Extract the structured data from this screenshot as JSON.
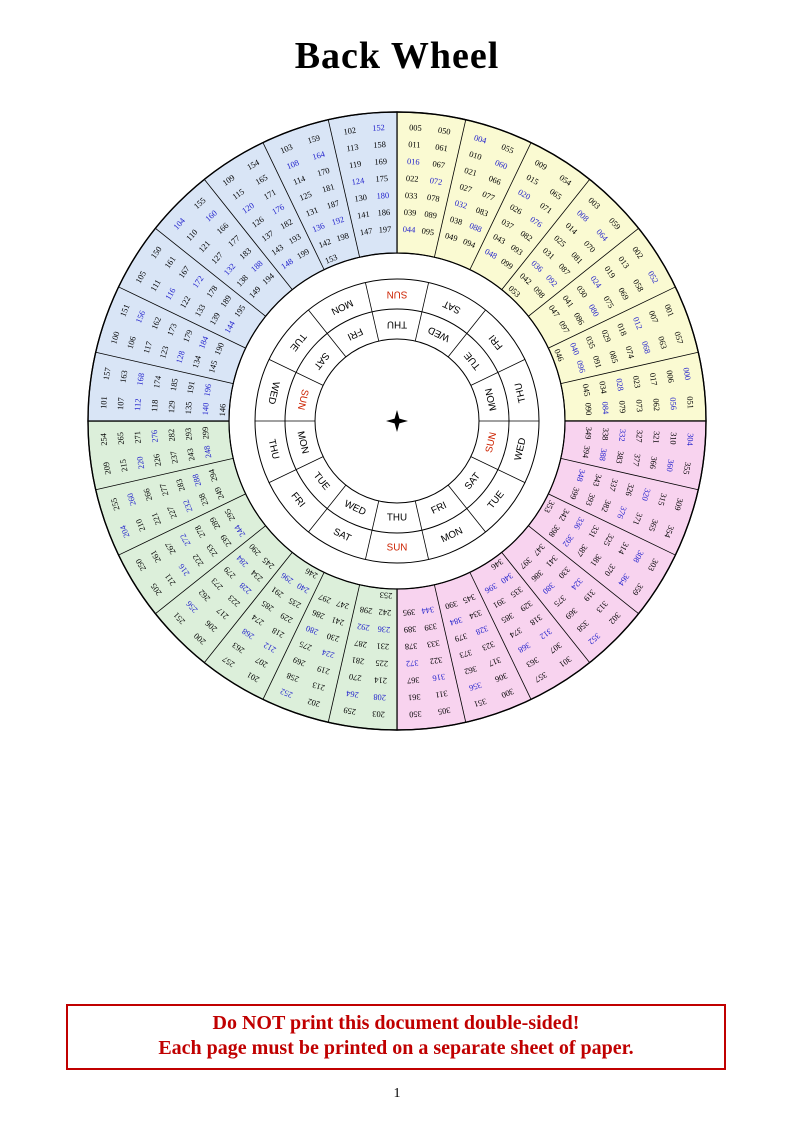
{
  "page": {
    "title": "Back Wheel",
    "page_number": "1",
    "warning_line1": "Do NOT print this document double-sided!",
    "warning_line2": "Each page must be printed on a separate sheet of paper.",
    "warning_color": "#c00000"
  },
  "wheel": {
    "colors": {
      "line": "#000000",
      "text": "#000000",
      "leap": "#2222cc",
      "sunday": "#cc2200",
      "day_text": "#000000"
    },
    "day_rings": [
      {
        "name": "outer-day-ring",
        "days": [
          "SUN",
          "SAT",
          "FRI",
          "THU",
          "WED",
          "TUE",
          "MON",
          "SUN",
          "SAT",
          "FRI",
          "THU",
          "WED",
          "TUE",
          "MON"
        ]
      },
      {
        "name": "inner-day-ring",
        "days": [
          "THU",
          "WED",
          "TUE",
          "MON",
          "SUN",
          "SAT",
          "FRI",
          "THU",
          "WED",
          "TUE",
          "MON",
          "SUN",
          "SAT",
          "FRI"
        ]
      }
    ],
    "quadrants": [
      {
        "name": "years-000-099",
        "color": "#fafad2",
        "start_angle": 0,
        "sectors": [
          {
            "c1": [
              "005",
              "011",
              "016",
              "022",
              "033",
              "039",
              "044"
            ],
            "c2": [
              "050",
              "061",
              "067",
              "072",
              "078",
              "089",
              "095"
            ]
          },
          {
            "c1": [
              "004",
              "010",
              "021",
              "027",
              "032",
              "038",
              "049"
            ],
            "c2": [
              "055",
              "060",
              "066",
              "077",
              "083",
              "088",
              "094"
            ]
          },
          {
            "c1": [
              "009",
              "015",
              "020",
              "026",
              "037",
              "043",
              "048"
            ],
            "c2": [
              "054",
              "065",
              "071",
              "076",
              "082",
              "093",
              "099"
            ]
          },
          {
            "c1": [
              "003",
              "008",
              "014",
              "025",
              "031",
              "036",
              "042",
              "053"
            ],
            "c2": [
              "059",
              "064",
              "070",
              "081",
              "087",
              "092",
              "098"
            ]
          },
          {
            "c1": [
              "002",
              "013",
              "019",
              "024",
              "030",
              "041",
              "047"
            ],
            "c2": [
              "052",
              "058",
              "069",
              "075",
              "080",
              "086",
              "097"
            ]
          },
          {
            "c1": [
              "001",
              "007",
              "012",
              "018",
              "029",
              "035",
              "040",
              "046"
            ],
            "c2": [
              "057",
              "063",
              "068",
              "074",
              "085",
              "091",
              "096"
            ]
          },
          {
            "c1": [
              "000",
              "006",
              "017",
              "023",
              "028",
              "034",
              "045"
            ],
            "c2": [
              "051",
              "056",
              "062",
              "073",
              "079",
              "084",
              "090"
            ]
          }
        ]
      },
      {
        "name": "years-300-399",
        "color": "#f8d3ef",
        "start_angle": 90,
        "sectors": [
          {
            "c1": [
              "304",
              "310",
              "321",
              "327",
              "332",
              "338",
              "349"
            ],
            "c2": [
              "355",
              "360",
              "366",
              "377",
              "383",
              "388",
              "394"
            ]
          },
          {
            "c1": [
              "309",
              "315",
              "320",
              "326",
              "337",
              "343",
              "348"
            ],
            "c2": [
              "354",
              "365",
              "371",
              "376",
              "382",
              "393",
              "399"
            ]
          },
          {
            "c1": [
              "303",
              "308",
              "314",
              "325",
              "331",
              "336",
              "342",
              "353"
            ],
            "c2": [
              "359",
              "364",
              "370",
              "381",
              "387",
              "392",
              "398"
            ]
          },
          {
            "c1": [
              "302",
              "313",
              "319",
              "324",
              "330",
              "341",
              "347"
            ],
            "c2": [
              "352",
              "358",
              "369",
              "375",
              "380",
              "386",
              "397"
            ]
          },
          {
            "c1": [
              "301",
              "307",
              "312",
              "318",
              "329",
              "335",
              "340",
              "346"
            ],
            "c2": [
              "357",
              "363",
              "368",
              "374",
              "385",
              "391",
              "396"
            ]
          },
          {
            "c1": [
              "300",
              "306",
              "317",
              "323",
              "328",
              "334",
              "345"
            ],
            "c2": [
              "351",
              "356",
              "362",
              "373",
              "379",
              "384",
              "390"
            ]
          },
          {
            "c1": [
              "305",
              "311",
              "316",
              "322",
              "333",
              "339",
              "344"
            ],
            "c2": [
              "350",
              "361",
              "367",
              "372",
              "378",
              "389",
              "395"
            ]
          }
        ]
      },
      {
        "name": "years-200-299",
        "color": "#dcefda",
        "start_angle": 180,
        "sectors": [
          {
            "c1": [
              "203",
              "208",
              "214",
              "225",
              "231",
              "236",
              "242",
              "253"
            ],
            "c2": [
              "259",
              "264",
              "270",
              "281",
              "287",
              "292",
              "298"
            ]
          },
          {
            "c1": [
              "202",
              "213",
              "219",
              "224",
              "230",
              "241",
              "247"
            ],
            "c2": [
              "252",
              "258",
              "269",
              "275",
              "280",
              "286",
              "297"
            ]
          },
          {
            "c1": [
              "201",
              "207",
              "212",
              "218",
              "229",
              "235",
              "240",
              "246"
            ],
            "c2": [
              "257",
              "263",
              "268",
              "274",
              "285",
              "291",
              "296"
            ]
          },
          {
            "c1": [
              "200",
              "206",
              "217",
              "223",
              "228",
              "234",
              "245"
            ],
            "c2": [
              "251",
              "256",
              "262",
              "273",
              "279",
              "284",
              "290"
            ]
          },
          {
            "c1": [
              "205",
              "211",
              "216",
              "222",
              "233",
              "239",
              "244"
            ],
            "c2": [
              "250",
              "261",
              "267",
              "272",
              "278",
              "289",
              "295"
            ]
          },
          {
            "c1": [
              "204",
              "210",
              "221",
              "227",
              "232",
              "238",
              "249"
            ],
            "c2": [
              "255",
              "260",
              "266",
              "277",
              "283",
              "288",
              "294"
            ]
          },
          {
            "c1": [
              "209",
              "215",
              "220",
              "226",
              "237",
              "243",
              "248"
            ],
            "c2": [
              "254",
              "265",
              "271",
              "276",
              "282",
              "293",
              "299"
            ]
          }
        ]
      },
      {
        "name": "years-100-199",
        "color": "#d9e5f6",
        "start_angle": 270,
        "sectors": [
          {
            "c1": [
              "101",
              "107",
              "112",
              "118",
              "129",
              "135",
              "140",
              "146"
            ],
            "c2": [
              "157",
              "163",
              "168",
              "174",
              "185",
              "191",
              "196"
            ]
          },
          {
            "c1": [
              "100",
              "106",
              "117",
              "123",
              "128",
              "134",
              "145"
            ],
            "c2": [
              "151",
              "156",
              "162",
              "173",
              "179",
              "184",
              "190"
            ]
          },
          {
            "c1": [
              "105",
              "111",
              "116",
              "122",
              "133",
              "139",
              "144"
            ],
            "c2": [
              "150",
              "161",
              "167",
              "172",
              "178",
              "189",
              "195"
            ]
          },
          {
            "c1": [
              "104",
              "110",
              "121",
              "127",
              "132",
              "138",
              "149"
            ],
            "c2": [
              "155",
              "160",
              "166",
              "177",
              "183",
              "188",
              "194"
            ]
          },
          {
            "c1": [
              "109",
              "115",
              "120",
              "126",
              "137",
              "143",
              "148"
            ],
            "c2": [
              "154",
              "165",
              "171",
              "176",
              "182",
              "193",
              "199"
            ]
          },
          {
            "c1": [
              "103",
              "108",
              "114",
              "125",
              "131",
              "136",
              "142",
              "153"
            ],
            "c2": [
              "159",
              "164",
              "170",
              "181",
              "187",
              "192",
              "198"
            ]
          },
          {
            "c1": [
              "102",
              "113",
              "119",
              "124",
              "130",
              "141",
              "147"
            ],
            "c2": [
              "152",
              "158",
              "169",
              "175",
              "180",
              "186",
              "197"
            ]
          }
        ]
      }
    ]
  }
}
